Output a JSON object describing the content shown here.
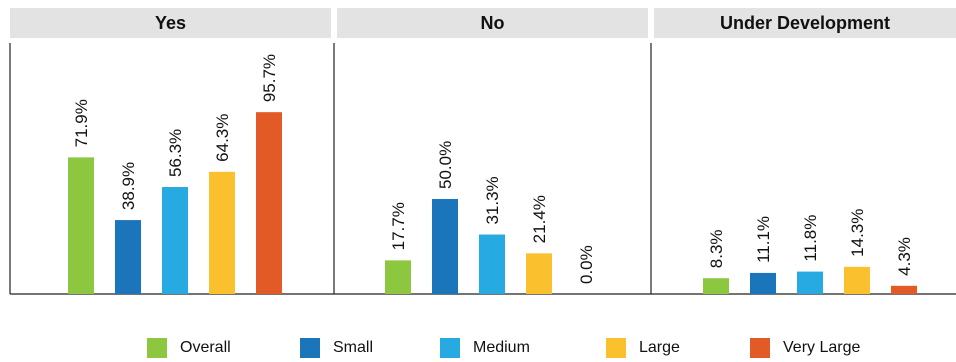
{
  "chart_data": {
    "type": "bar",
    "panels": [
      "Yes",
      "No",
      "Under Development"
    ],
    "categories": [
      "Overall",
      "Small",
      "Medium",
      "Large",
      "Very Large"
    ],
    "values": [
      [
        71.9,
        38.9,
        56.3,
        64.3,
        95.7
      ],
      [
        17.7,
        50.0,
        31.3,
        21.4,
        0.0
      ],
      [
        8.3,
        11.1,
        11.8,
        14.3,
        4.3
      ]
    ],
    "value_labels": [
      [
        "71.9%",
        "38.9%",
        "56.3%",
        "64.3%",
        "95.7%"
      ],
      [
        "17.7%",
        "50.0%",
        "31.3%",
        "21.4%",
        "0.0%"
      ],
      [
        "8.3%",
        "11.1%",
        "11.8%",
        "14.3%",
        "4.3%"
      ]
    ],
    "colors": [
      "#8dc63f",
      "#1b75bb",
      "#27aae1",
      "#fbc02d",
      "#e25a26"
    ],
    "ylim": [
      0,
      100
    ],
    "grid": false,
    "legend": "bottom"
  }
}
